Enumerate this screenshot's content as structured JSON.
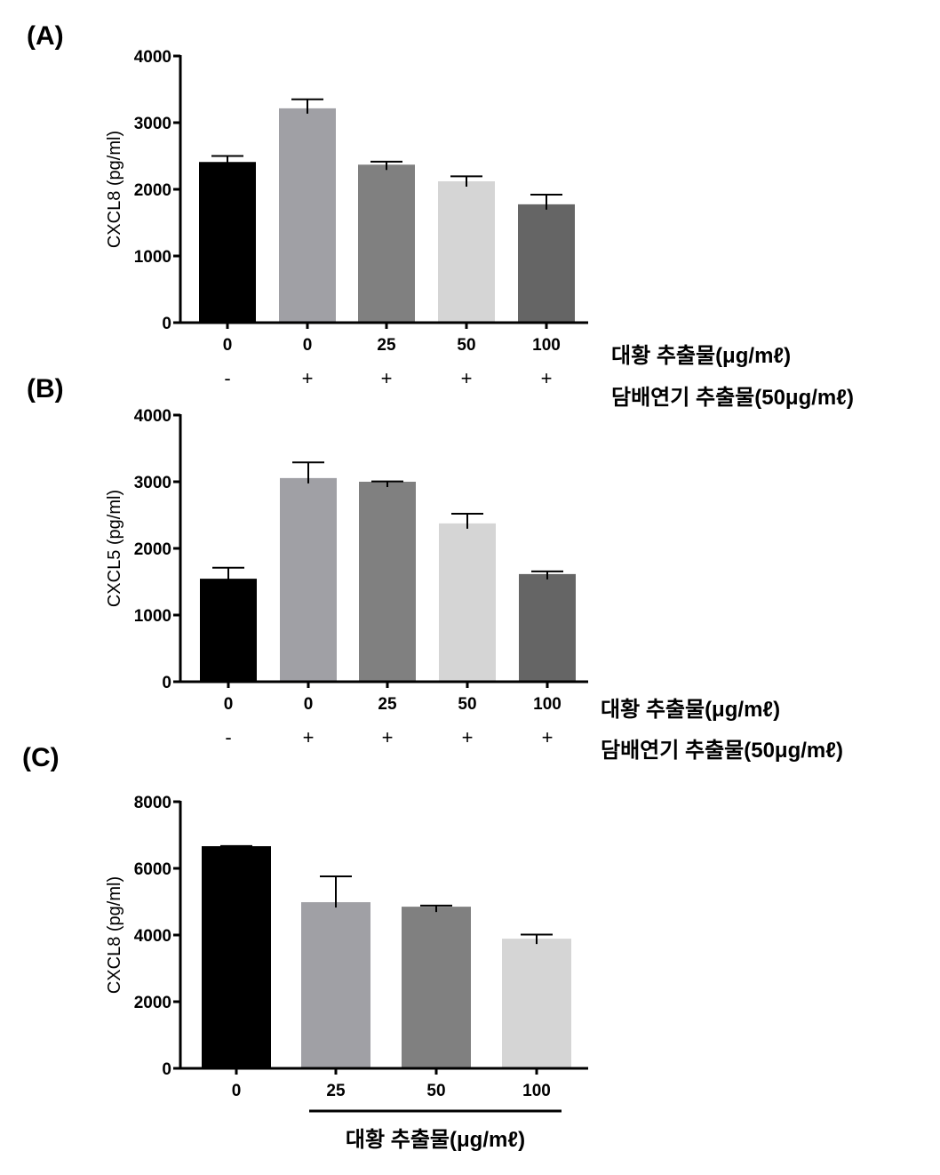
{
  "chart_data": [
    {
      "panel": "(A)",
      "type": "bar",
      "ylabel": "CXCL8 (pg/ml)",
      "ylim": [
        0,
        4000
      ],
      "yticks": [
        0,
        1000,
        2000,
        3000,
        4000
      ],
      "categories": [
        "0",
        "0",
        "25",
        "50",
        "100"
      ],
      "smoke": [
        "-",
        "+",
        "+",
        "+",
        "+"
      ],
      "values": [
        2410,
        3215,
        2370,
        2120,
        1775
      ],
      "errors": [
        90,
        135,
        45,
        75,
        145
      ],
      "colors": [
        "#000000",
        "#a0a0a5",
        "#808080",
        "#d5d5d5",
        "#656565"
      ],
      "row_label_1": "대황 추출물(μg/mℓ)",
      "row_label_2": "담배연기 추출물(50μg/mℓ)"
    },
    {
      "panel": "(B)",
      "type": "bar",
      "ylabel": "CXCL5 (pg/ml)",
      "ylim": [
        0,
        4000
      ],
      "yticks": [
        0,
        1000,
        2000,
        3000,
        4000
      ],
      "categories": [
        "0",
        "0",
        "25",
        "50",
        "100"
      ],
      "smoke": [
        "-",
        "+",
        "+",
        "+",
        "+"
      ],
      "values": [
        1545,
        3055,
        3000,
        2375,
        1615
      ],
      "errors": [
        165,
        235,
        5,
        145,
        40
      ],
      "colors": [
        "#000000",
        "#a0a0a5",
        "#808080",
        "#d5d5d5",
        "#656565"
      ],
      "row_label_1": "대황 추출물(μg/mℓ)",
      "row_label_2": "담배연기 추출물(50μg/mℓ)"
    },
    {
      "panel": "(C)",
      "type": "bar",
      "ylabel": "CXCL8 (pg/ml)",
      "ylim": [
        0,
        8000
      ],
      "yticks": [
        0,
        2000,
        4000,
        6000,
        8000
      ],
      "categories": [
        "0",
        "25",
        "50",
        "100"
      ],
      "values": [
        6665,
        4985,
        4850,
        3890
      ],
      "errors": [
        5,
        775,
        35,
        125
      ],
      "colors": [
        "#000000",
        "#a0a0a5",
        "#808080",
        "#d5d5d5"
      ],
      "row_label_1": "대황 추출물(μg/mℓ)"
    }
  ]
}
